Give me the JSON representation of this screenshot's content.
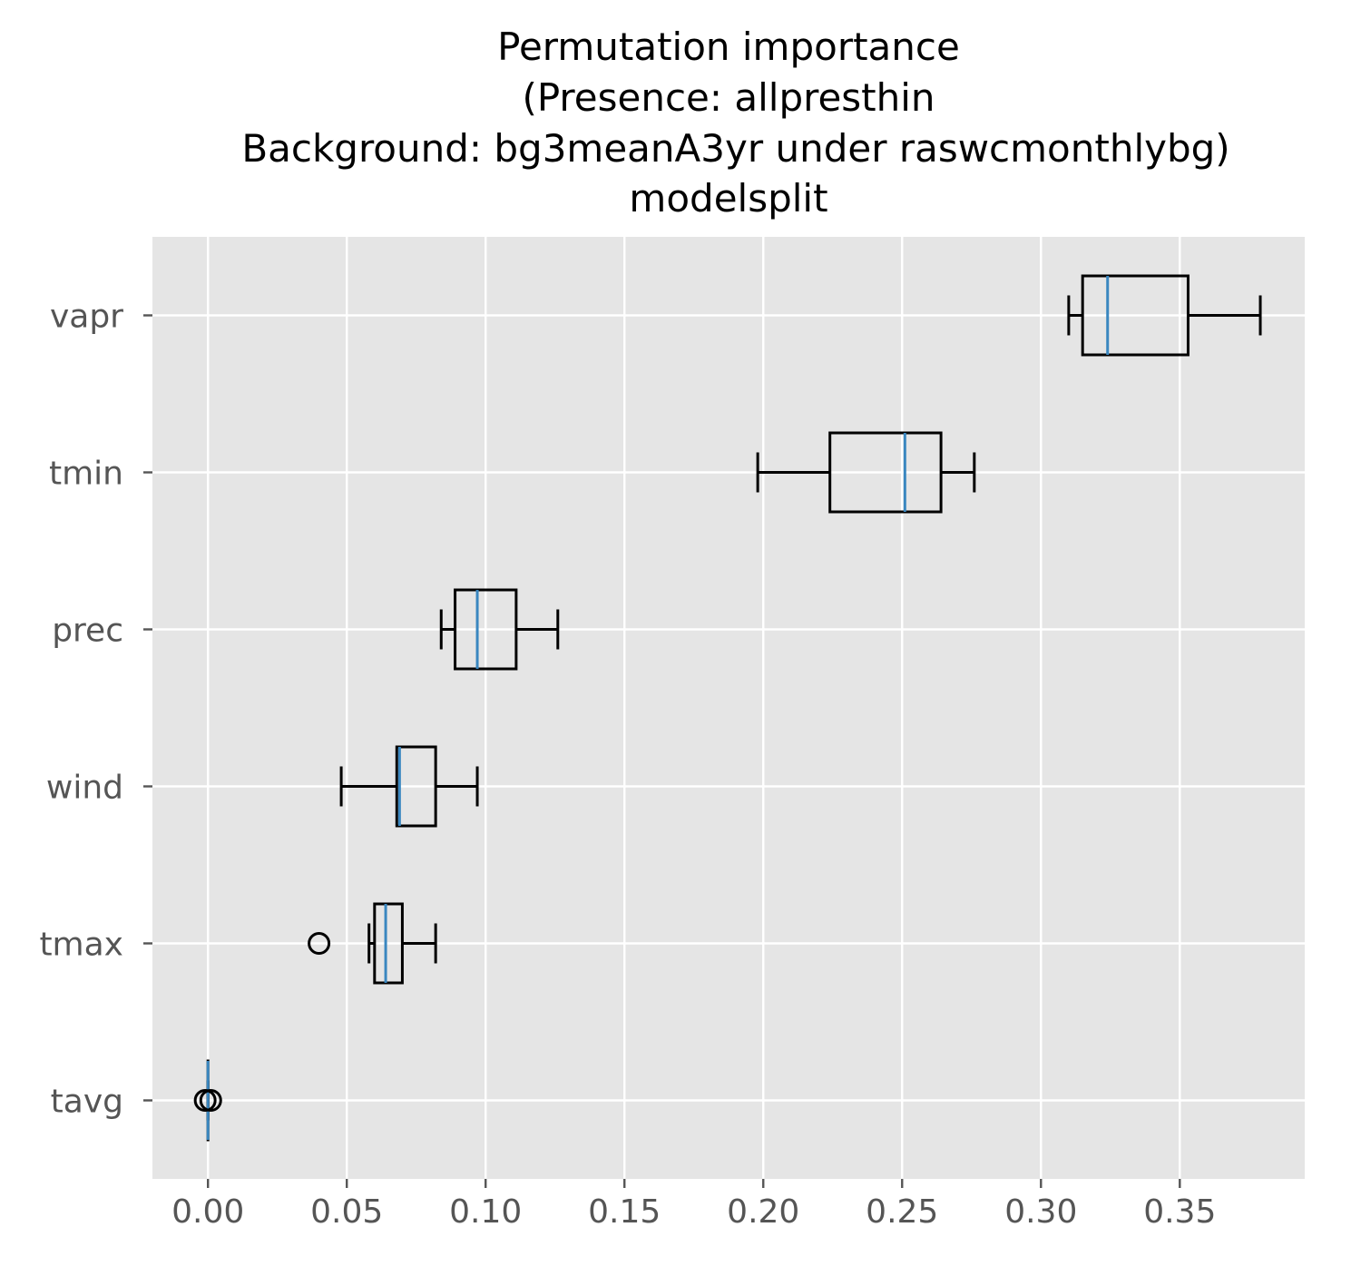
{
  "chart_data": {
    "type": "boxplot",
    "orientation": "horizontal",
    "title_lines": [
      "Permutation importance",
      "(Presence: allpresthin",
      "Background: bg3meanA3yr under raswcmonthlybg)",
      "modelsplit"
    ],
    "xlabel": "",
    "ylabel": "",
    "xlim": [
      -0.02,
      0.395
    ],
    "xticks": [
      0.0,
      0.05,
      0.1,
      0.15,
      0.2,
      0.25,
      0.3,
      0.35
    ],
    "xtick_labels": [
      "0.00",
      "0.05",
      "0.10",
      "0.15",
      "0.20",
      "0.25",
      "0.30",
      "0.35"
    ],
    "grid": true,
    "style": "ggplot",
    "colors": {
      "plot_background": "#e5e5e5",
      "grid": "#ffffff",
      "box": "#000000",
      "median": "#3a87c0",
      "tick_label": "#555555"
    },
    "categories": [
      "tavg",
      "tmax",
      "wind",
      "prec",
      "tmin",
      "vapr"
    ],
    "boxes": [
      {
        "name": "tavg",
        "whisker_low": 0.0,
        "q1": 0.0,
        "median": 0.0,
        "q3": 0.0,
        "whisker_high": 0.0,
        "outliers": [
          -0.001,
          0.001
        ]
      },
      {
        "name": "tmax",
        "whisker_low": 0.058,
        "q1": 0.06,
        "median": 0.064,
        "q3": 0.07,
        "whisker_high": 0.082,
        "outliers": [
          0.04
        ]
      },
      {
        "name": "wind",
        "whisker_low": 0.048,
        "q1": 0.068,
        "median": 0.069,
        "q3": 0.082,
        "whisker_high": 0.097,
        "outliers": []
      },
      {
        "name": "prec",
        "whisker_low": 0.084,
        "q1": 0.089,
        "median": 0.097,
        "q3": 0.111,
        "whisker_high": 0.126,
        "outliers": []
      },
      {
        "name": "tmin",
        "whisker_low": 0.198,
        "q1": 0.224,
        "median": 0.251,
        "q3": 0.264,
        "whisker_high": 0.276,
        "outliers": []
      },
      {
        "name": "vapr",
        "whisker_low": 0.31,
        "q1": 0.315,
        "median": 0.324,
        "q3": 0.353,
        "whisker_high": 0.379,
        "outliers": []
      }
    ]
  }
}
